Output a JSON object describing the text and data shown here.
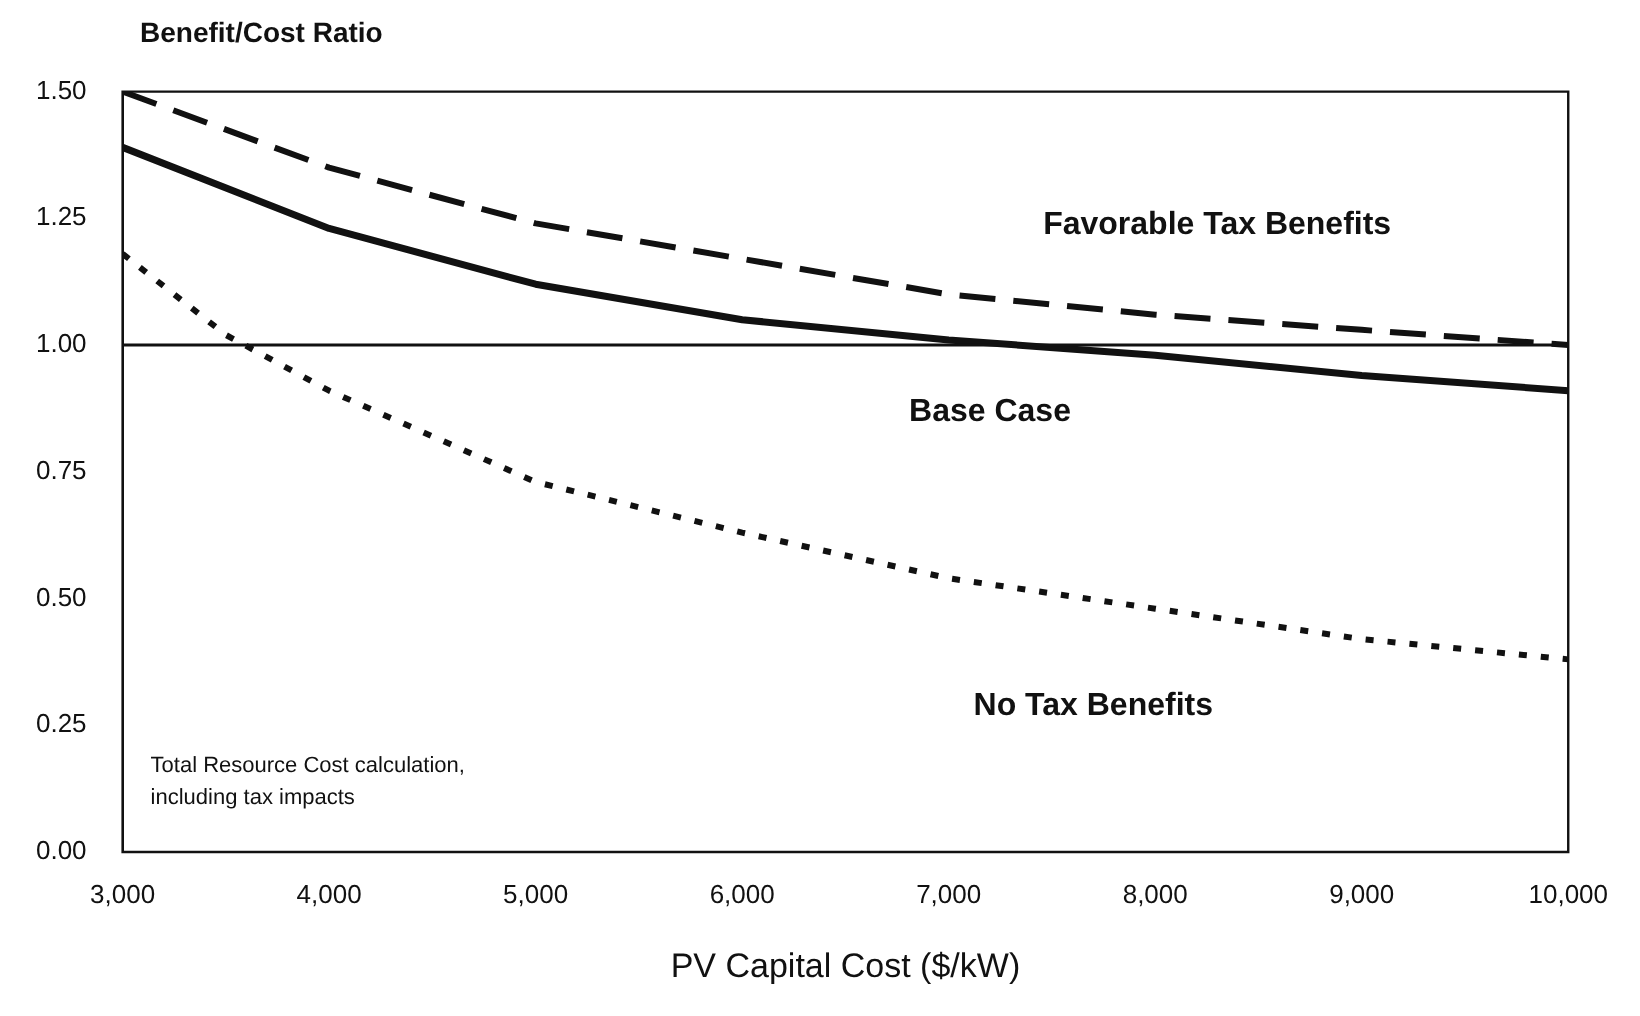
{
  "chart_data": {
    "type": "line",
    "ylabel": "Benefit/Cost Ratio",
    "xlabel": "PV Capital Cost ($/kW)",
    "x": [
      3000,
      4000,
      5000,
      6000,
      7000,
      8000,
      9000,
      10000
    ],
    "xlim": [
      3000,
      10000
    ],
    "xticks": [
      {
        "value": 3000,
        "label": "3,000"
      },
      {
        "value": 4000,
        "label": "4,000"
      },
      {
        "value": 5000,
        "label": "5,000"
      },
      {
        "value": 6000,
        "label": "6,000"
      },
      {
        "value": 7000,
        "label": "7,000"
      },
      {
        "value": 8000,
        "label": "8,000"
      },
      {
        "value": 9000,
        "label": "9,000"
      },
      {
        "value": 10000,
        "label": "10,000"
      }
    ],
    "ylim": [
      0,
      1.5
    ],
    "yticks": [
      {
        "value": 0,
        "label": "0.00"
      },
      {
        "value": 0.25,
        "label": "0.25"
      },
      {
        "value": 0.5,
        "label": "0.50"
      },
      {
        "value": 0.75,
        "label": "0.75"
      },
      {
        "value": 1,
        "label": "1.00"
      },
      {
        "value": 1.25,
        "label": "1.25"
      },
      {
        "value": 1.5,
        "label": "1.50"
      }
    ],
    "grid": false,
    "legend": false,
    "marker": "none",
    "series": [
      {
        "name": "Favorable Tax Benefits",
        "color": "#111111",
        "line_style": "dashed",
        "values": [
          1.5,
          1.35,
          1.24,
          1.17,
          1.1,
          1.06,
          1.03,
          1.0
        ]
      },
      {
        "name": "Base Case",
        "color": "#111111",
        "line_style": "solid",
        "values": [
          1.39,
          1.23,
          1.12,
          1.05,
          1.01,
          0.98,
          0.94,
          0.91
        ]
      },
      {
        "name": "No Tax Benefits",
        "color": "#111111",
        "line_style": "dotted",
        "x": [
          3000,
          3500,
          4000,
          5000,
          6000,
          7000,
          8000,
          9000,
          10000
        ],
        "values": [
          1.18,
          1.02,
          0.91,
          0.73,
          0.63,
          0.54,
          0.48,
          0.42,
          0.38
        ]
      }
    ],
    "ref_lines": [
      {
        "axis": "y",
        "value": 1.0,
        "color": "#111111"
      }
    ],
    "annotations": [
      "Total Resource Cost calculation,\nincluding tax impacts"
    ]
  }
}
